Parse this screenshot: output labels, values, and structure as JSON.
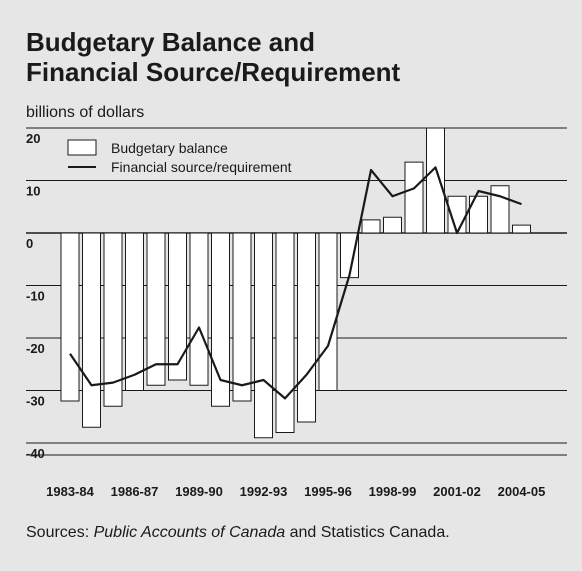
{
  "title_line1": "Budgetary Balance and",
  "title_line2": "Financial Source/Requirement",
  "unit_label": "billions of dollars",
  "source": {
    "prefix": "Sources: ",
    "italic": "Public Accounts of Canada",
    "suffix": " and Statistics Canada."
  },
  "colors": {
    "background": "#e6e6e6",
    "bar_fill": "#ffffff",
    "stroke": "#1a1a1a"
  },
  "chart_data": {
    "type": "bar",
    "title": "Budgetary Balance and Financial Source/Requirement",
    "ylabel": "billions of dollars",
    "ylim": [
      -40,
      20
    ],
    "y_ticks": [
      20,
      10,
      0,
      -10,
      -20,
      -30,
      -40
    ],
    "x_tick_labels": [
      "1983-84",
      "1986-87",
      "1989-90",
      "1992-93",
      "1995-96",
      "1998-99",
      "2001-02",
      "2004-05"
    ],
    "categories": [
      "1983-84",
      "1984-85",
      "1985-86",
      "1986-87",
      "1987-88",
      "1988-89",
      "1989-90",
      "1990-91",
      "1991-92",
      "1992-93",
      "1993-94",
      "1994-95",
      "1995-96",
      "1996-97",
      "1997-98",
      "1998-99",
      "1999-00",
      "2000-01",
      "2001-02",
      "2002-03",
      "2003-04",
      "2004-05",
      "2005-06"
    ],
    "grid": "horizontal",
    "legend_position": "top-left",
    "series": [
      {
        "name": "Budgetary balance",
        "type": "bar",
        "values": [
          -32.0,
          -37.0,
          -33.0,
          -30.0,
          -29.0,
          -28.0,
          -29.0,
          -33.0,
          -32.0,
          -39.0,
          -38.0,
          -36.0,
          -30.0,
          -8.5,
          2.5,
          3.0,
          13.5,
          20.0,
          7.0,
          7.0,
          9.0,
          1.5,
          null
        ]
      },
      {
        "name": "Financial source/requirement",
        "type": "line",
        "values": [
          -23.0,
          -29.0,
          -28.5,
          -27.0,
          -25.0,
          -25.0,
          -18.0,
          -28.0,
          -29.0,
          -28.0,
          -31.5,
          -27.0,
          -21.5,
          -8.0,
          12.0,
          7.0,
          8.5,
          12.5,
          0.0,
          8.0,
          7.0,
          5.5,
          null
        ]
      }
    ]
  }
}
